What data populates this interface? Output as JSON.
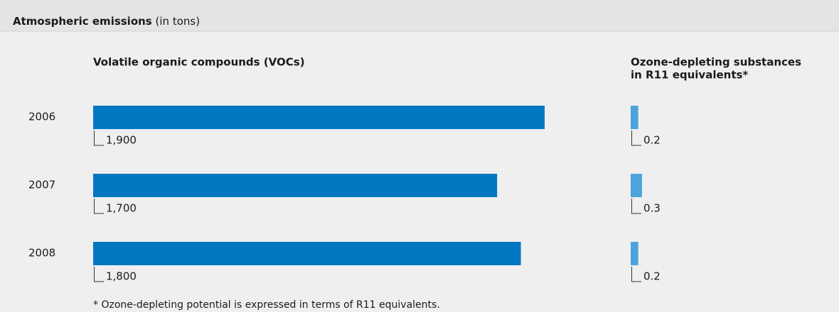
{
  "title": "Atmospheric emissions",
  "title_note": "(in tons)",
  "chart_data": [
    {
      "type": "bar",
      "title": [
        "Volatile organic compounds (VOCs)"
      ],
      "categories": [
        "2006",
        "2007",
        "2008"
      ],
      "values": [
        1900,
        1700,
        1800
      ],
      "value_labels": [
        "1,900",
        "1,700",
        "1,800"
      ],
      "color": "#0077c0"
    },
    {
      "type": "bar",
      "title": [
        "Ozone-depleting substances",
        "in R11 equivalents*"
      ],
      "values": [
        0.2,
        0.3,
        0.2
      ],
      "color": "#4da3de"
    }
  ],
  "footnote": "* Ozone-depleting potential is expressed in terms of R11 equivalents."
}
